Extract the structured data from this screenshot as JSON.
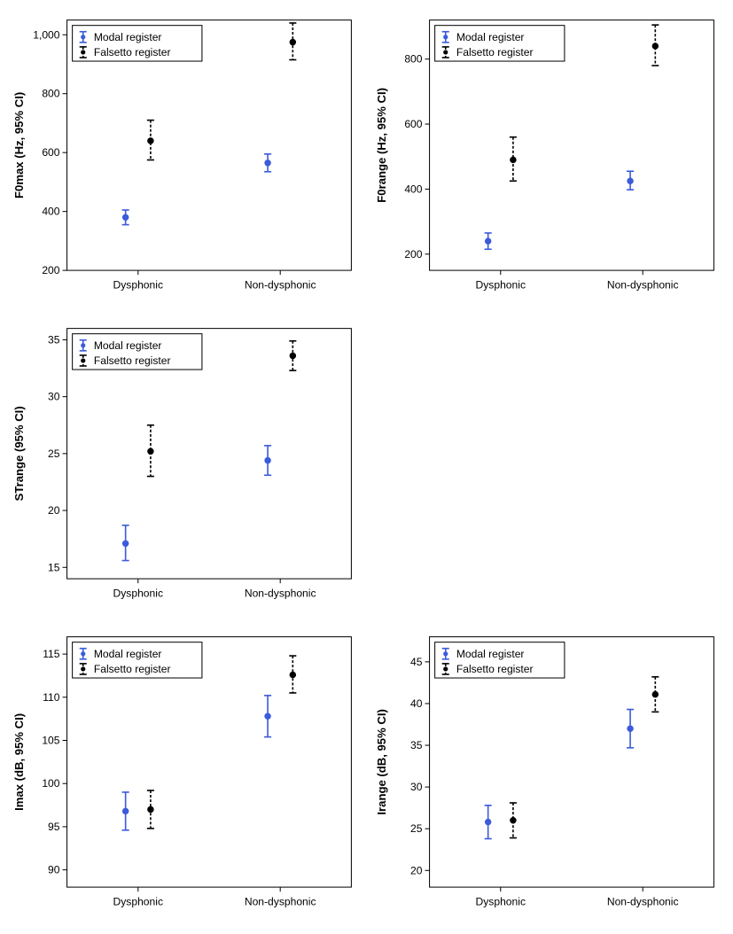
{
  "global": {
    "x_categories": [
      "Dysphonic",
      "Non-dysphonic"
    ],
    "series": [
      {
        "key": "modal",
        "label": "Modal register",
        "color": "#3b5bdb",
        "style": "solid"
      },
      {
        "key": "falsetto",
        "label": "Falsetto register",
        "color": "#000000",
        "style": "dashed"
      }
    ],
    "legend_fontsize": 12,
    "axis_label_fontsize": 13,
    "tick_fontsize": 12,
    "background": "#ffffff",
    "border_color": "#000000"
  },
  "panels": [
    {
      "id": "f0max",
      "ylabel": "F0max (Hz, 95% CI)",
      "ylim": [
        200,
        1050
      ],
      "yticks": [
        200,
        400,
        600,
        800,
        1000
      ],
      "yticklabels": [
        "200",
        "400",
        "600",
        "800",
        "1,000"
      ],
      "data": {
        "Dysphonic": {
          "modal": {
            "mean": 380,
            "lo": 355,
            "hi": 405
          },
          "falsetto": {
            "mean": 640,
            "lo": 575,
            "hi": 710
          }
        },
        "Non-dysphonic": {
          "modal": {
            "mean": 565,
            "lo": 535,
            "hi": 595
          },
          "falsetto": {
            "mean": 975,
            "lo": 915,
            "hi": 1040
          }
        }
      }
    },
    {
      "id": "f0range",
      "ylabel": "F0range (Hz, 95% CI)",
      "ylim": [
        150,
        920
      ],
      "yticks": [
        200,
        400,
        600,
        800
      ],
      "yticklabels": [
        "200",
        "400",
        "600",
        "800"
      ],
      "data": {
        "Dysphonic": {
          "modal": {
            "mean": 240,
            "lo": 215,
            "hi": 265
          },
          "falsetto": {
            "mean": 490,
            "lo": 425,
            "hi": 560
          }
        },
        "Non-dysphonic": {
          "modal": {
            "mean": 425,
            "lo": 398,
            "hi": 455
          },
          "falsetto": {
            "mean": 840,
            "lo": 780,
            "hi": 905
          }
        }
      }
    },
    {
      "id": "strange",
      "ylabel": "STrange (95% CI)",
      "ylim": [
        14,
        36
      ],
      "yticks": [
        15,
        20,
        25,
        30,
        35
      ],
      "yticklabels": [
        "15",
        "20",
        "25",
        "30",
        "35"
      ],
      "data": {
        "Dysphonic": {
          "modal": {
            "mean": 17.1,
            "lo": 15.6,
            "hi": 18.7
          },
          "falsetto": {
            "mean": 25.2,
            "lo": 23.0,
            "hi": 27.5
          }
        },
        "Non-dysphonic": {
          "modal": {
            "mean": 24.4,
            "lo": 23.1,
            "hi": 25.7
          },
          "falsetto": {
            "mean": 33.6,
            "lo": 32.3,
            "hi": 34.9
          }
        }
      }
    },
    null,
    {
      "id": "imax",
      "ylabel": "Imax (dB, 95% CI)",
      "ylim": [
        88,
        117
      ],
      "yticks": [
        90,
        95,
        100,
        105,
        110,
        115
      ],
      "yticklabels": [
        "90",
        "95",
        "100",
        "105",
        "110",
        "115"
      ],
      "data": {
        "Dysphonic": {
          "modal": {
            "mean": 96.8,
            "lo": 94.6,
            "hi": 99.0
          },
          "falsetto": {
            "mean": 97.0,
            "lo": 94.8,
            "hi": 99.2
          }
        },
        "Non-dysphonic": {
          "modal": {
            "mean": 107.8,
            "lo": 105.4,
            "hi": 110.2
          },
          "falsetto": {
            "mean": 112.6,
            "lo": 110.5,
            "hi": 114.8
          }
        }
      }
    },
    {
      "id": "irange",
      "ylabel": "Irange (dB, 95% CI)",
      "ylim": [
        18,
        48
      ],
      "yticks": [
        20,
        25,
        30,
        35,
        40,
        45
      ],
      "yticklabels": [
        "20",
        "25",
        "30",
        "35",
        "40",
        "45"
      ],
      "data": {
        "Dysphonic": {
          "modal": {
            "mean": 25.8,
            "lo": 23.8,
            "hi": 27.8
          },
          "falsetto": {
            "mean": 26.0,
            "lo": 23.9,
            "hi": 28.1
          }
        },
        "Non-dysphonic": {
          "modal": {
            "mean": 37.0,
            "lo": 34.7,
            "hi": 39.3
          },
          "falsetto": {
            "mean": 41.1,
            "lo": 39.0,
            "hi": 43.2
          }
        }
      }
    }
  ]
}
